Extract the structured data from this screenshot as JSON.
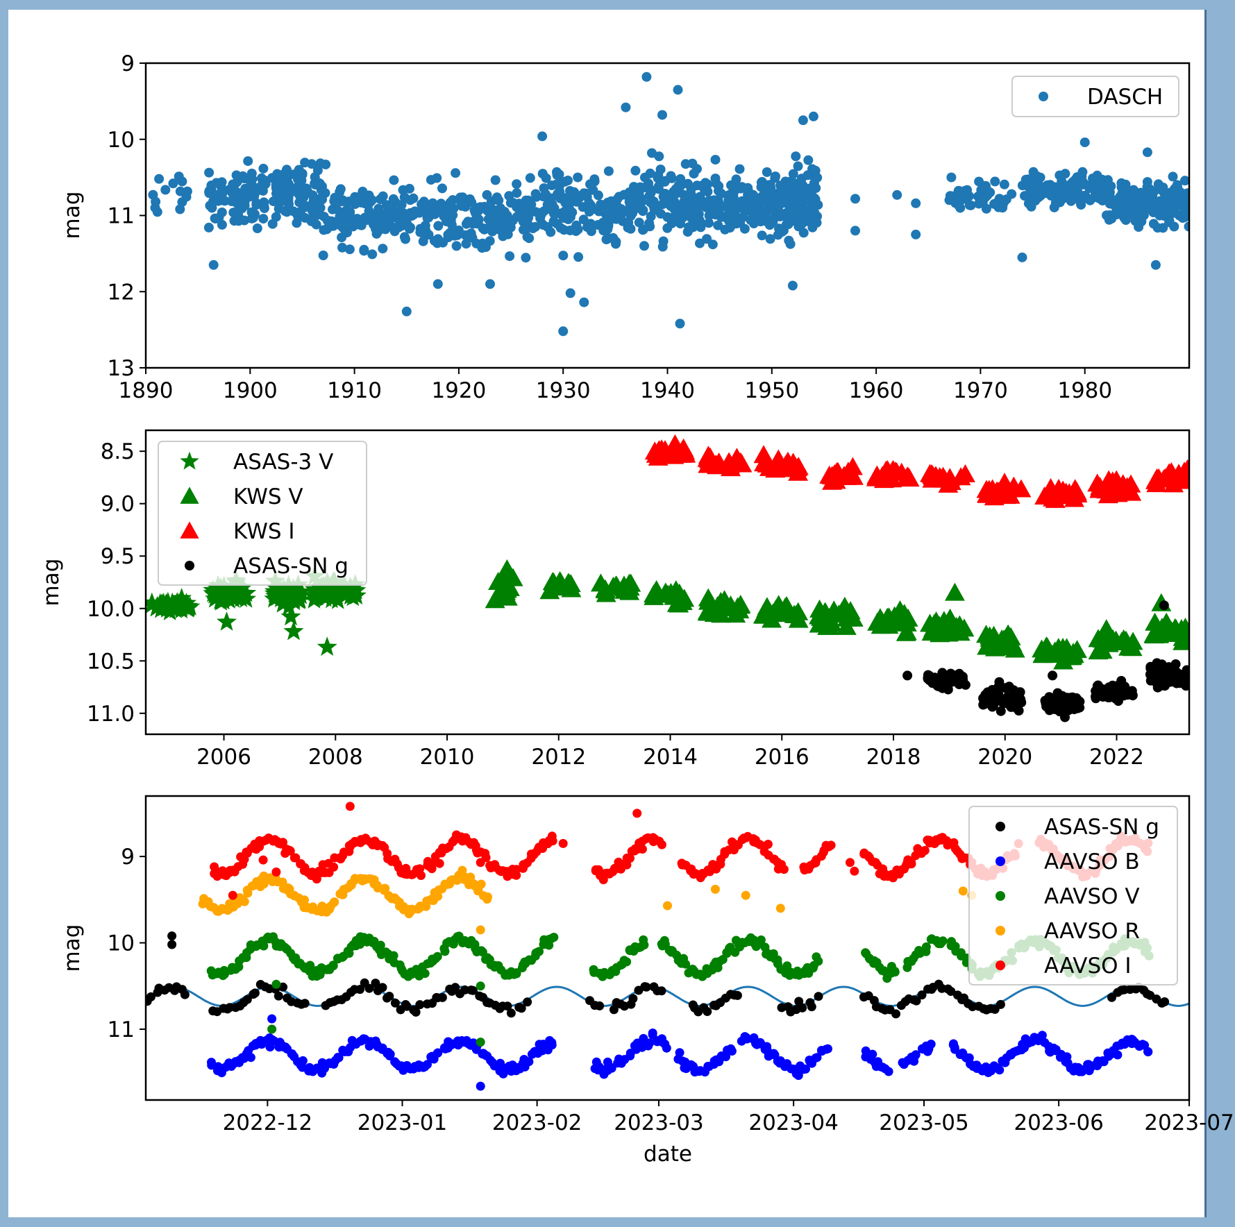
{
  "chart_data": [
    {
      "type": "scatter",
      "id": "dasch",
      "title": "",
      "xlabel": "",
      "ylabel": "mag",
      "xlim": [
        1890,
        1990
      ],
      "ylim": [
        13,
        9
      ],
      "y_inverted": true,
      "xticks": [
        1890,
        1900,
        1910,
        1920,
        1930,
        1940,
        1950,
        1960,
        1970,
        1980
      ],
      "yticks": [
        9,
        10,
        11,
        12,
        13
      ],
      "legend": {
        "placement": "top-right",
        "entries": [
          {
            "label": "DASCH",
            "color": "#1f77b4",
            "marker": "circle"
          }
        ]
      },
      "series": [
        {
          "name": "DASCH",
          "color": "#1f77b4",
          "marker": "circle",
          "segments": [
            {
              "x0": 1890.0,
              "x1": 1894.0,
              "y": 10.75,
              "spread": 0.3,
              "n": 14
            },
            {
              "x0": 1896.0,
              "x1": 1907.0,
              "y": 10.75,
              "spread": 0.35,
              "n": 170
            },
            {
              "x0": 1907.0,
              "x1": 1928.0,
              "y": 11.0,
              "spread": 0.35,
              "n": 300
            },
            {
              "x0": 1928.0,
              "x1": 1947.0,
              "y": 10.85,
              "spread": 0.4,
              "n": 330
            },
            {
              "x0": 1947.0,
              "x1": 1954.5,
              "y": 10.85,
              "spread": 0.4,
              "n": 200
            },
            {
              "x0": 1967.0,
              "x1": 1973.0,
              "y": 10.7,
              "spread": 0.2,
              "n": 45
            },
            {
              "x0": 1974.0,
              "x1": 1982.0,
              "y": 10.65,
              "spread": 0.2,
              "n": 110
            },
            {
              "x0": 1982.0,
              "x1": 1990.0,
              "y": 10.85,
              "spread": 0.25,
              "n": 150
            }
          ],
          "outliers": [
            [
              1938.0,
              9.18
            ],
            [
              1941.0,
              9.35
            ],
            [
              1936.0,
              9.58
            ],
            [
              1939.5,
              9.68
            ],
            [
              1954.0,
              9.7
            ],
            [
              1953.0,
              9.75
            ],
            [
              1930.0,
              12.52
            ],
            [
              1941.2,
              12.42
            ],
            [
              1915.0,
              12.26
            ],
            [
              1932.0,
              12.14
            ],
            [
              1930.7,
              12.02
            ],
            [
              1958.0,
              10.78
            ],
            [
              1958.0,
              11.2
            ],
            [
              1962.0,
              10.73
            ],
            [
              1963.8,
              10.84
            ],
            [
              1963.8,
              11.25
            ],
            [
              1974.0,
              11.55
            ],
            [
              1986.8,
              11.65
            ],
            [
              1896.5,
              11.65
            ],
            [
              1938.5,
              10.18
            ],
            [
              1986.0,
              10.17
            ],
            [
              1980.0,
              10.04
            ],
            [
              1928.0,
              9.96
            ],
            [
              1952.0,
              11.92
            ],
            [
              1918.0,
              11.9
            ],
            [
              1923.0,
              11.9
            ]
          ]
        }
      ]
    },
    {
      "type": "scatter",
      "id": "asas_kws",
      "title": "",
      "xlabel": "",
      "ylabel": "mag",
      "xlim": [
        2004.6,
        2023.3
      ],
      "ylim": [
        11.2,
        8.3
      ],
      "y_inverted": true,
      "xticks": [
        2006,
        2008,
        2010,
        2012,
        2014,
        2016,
        2018,
        2020,
        2022
      ],
      "yticks": [
        8.5,
        9.0,
        9.5,
        10.0,
        10.5,
        11.0
      ],
      "ytick_labels": [
        "8.5",
        "9.0",
        "9.5",
        "10.0",
        "10.5",
        "11.0"
      ],
      "legend": {
        "placement": "top-left",
        "entries": [
          {
            "label": "ASAS-3 V",
            "color": "#008000",
            "marker": "star"
          },
          {
            "label": "KWS V",
            "color": "#008000",
            "marker": "triangle"
          },
          {
            "label": "KWS I",
            "color": "#ff0000",
            "marker": "triangle"
          },
          {
            "label": "ASAS-SN g",
            "color": "#000000",
            "marker": "circle"
          }
        ]
      },
      "series": [
        {
          "name": "ASAS-3 V",
          "color": "#008000",
          "marker": "star",
          "segments": [
            {
              "x0": 2004.7,
              "x1": 2005.4,
              "y": 9.97,
              "spread": 0.05,
              "n": 40
            },
            {
              "x0": 2005.8,
              "x1": 2006.4,
              "y": 9.85,
              "spread": 0.08,
              "n": 45
            },
            {
              "x0": 2006.9,
              "x1": 2007.4,
              "y": 9.88,
              "spread": 0.09,
              "n": 40
            },
            {
              "x0": 2007.6,
              "x1": 2008.4,
              "y": 9.84,
              "spread": 0.08,
              "n": 50
            }
          ],
          "outliers": [
            [
              2006.05,
              10.13
            ],
            [
              2007.2,
              10.08
            ],
            [
              2007.25,
              10.22
            ],
            [
              2007.85,
              10.37
            ]
          ]
        },
        {
          "name": "KWS V",
          "color": "#008000",
          "marker": "triangle",
          "segments": [
            {
              "x0": 2010.85,
              "x1": 2011.2,
              "y": 9.82,
              "spread": 0.12,
              "n": 14
            },
            {
              "x0": 2011.8,
              "x1": 2012.25,
              "y": 9.77,
              "spread": 0.05,
              "n": 12
            },
            {
              "x0": 2012.7,
              "x1": 2013.3,
              "y": 9.8,
              "spread": 0.06,
              "n": 16
            },
            {
              "x0": 2013.7,
              "x1": 2014.3,
              "y": 9.88,
              "spread": 0.08,
              "n": 16
            },
            {
              "x0": 2014.65,
              "x1": 2015.3,
              "y": 9.97,
              "spread": 0.1,
              "n": 20
            },
            {
              "x0": 2015.65,
              "x1": 2016.3,
              "y": 10.02,
              "spread": 0.08,
              "n": 20
            },
            {
              "x0": 2016.65,
              "x1": 2017.3,
              "y": 10.1,
              "spread": 0.1,
              "n": 20
            },
            {
              "x0": 2017.65,
              "x1": 2018.3,
              "y": 10.12,
              "spread": 0.08,
              "n": 20
            },
            {
              "x0": 2018.65,
              "x1": 2019.3,
              "y": 10.2,
              "spread": 0.08,
              "n": 20
            },
            {
              "x0": 2019.65,
              "x1": 2020.3,
              "y": 10.32,
              "spread": 0.08,
              "n": 20
            },
            {
              "x0": 2020.65,
              "x1": 2021.3,
              "y": 10.4,
              "spread": 0.07,
              "n": 20
            },
            {
              "x0": 2021.65,
              "x1": 2022.3,
              "y": 10.32,
              "spread": 0.09,
              "n": 20
            },
            {
              "x0": 2022.65,
              "x1": 2023.3,
              "y": 10.2,
              "spread": 0.1,
              "n": 22
            }
          ],
          "outliers": [
            [
              2019.1,
              9.85
            ],
            [
              2022.8,
              9.95
            ]
          ]
        },
        {
          "name": "KWS I",
          "color": "#ff0000",
          "marker": "triangle",
          "segments": [
            {
              "x0": 2013.7,
              "x1": 2014.3,
              "y": 8.5,
              "spread": 0.06,
              "n": 18
            },
            {
              "x0": 2014.65,
              "x1": 2015.3,
              "y": 8.6,
              "spread": 0.07,
              "n": 20
            },
            {
              "x0": 2015.65,
              "x1": 2016.3,
              "y": 8.63,
              "spread": 0.07,
              "n": 20
            },
            {
              "x0": 2016.85,
              "x1": 2017.3,
              "y": 8.74,
              "spread": 0.07,
              "n": 16
            },
            {
              "x0": 2017.65,
              "x1": 2018.3,
              "y": 8.72,
              "spread": 0.06,
              "n": 18
            },
            {
              "x0": 2018.65,
              "x1": 2019.3,
              "y": 8.75,
              "spread": 0.05,
              "n": 18
            },
            {
              "x0": 2019.65,
              "x1": 2020.3,
              "y": 8.88,
              "spread": 0.07,
              "n": 20
            },
            {
              "x0": 2020.65,
              "x1": 2021.3,
              "y": 8.9,
              "spread": 0.06,
              "n": 20
            },
            {
              "x0": 2021.65,
              "x1": 2022.3,
              "y": 8.84,
              "spread": 0.08,
              "n": 20
            },
            {
              "x0": 2022.65,
              "x1": 2023.3,
              "y": 8.75,
              "spread": 0.08,
              "n": 22
            }
          ],
          "outliers": []
        },
        {
          "name": "ASAS-SN g",
          "color": "#000000",
          "marker": "circle",
          "segments": [
            {
              "x0": 2018.6,
              "x1": 2019.3,
              "y": 10.68,
              "spread": 0.07,
              "n": 60
            },
            {
              "x0": 2019.6,
              "x1": 2020.3,
              "y": 10.85,
              "spread": 0.09,
              "n": 80
            },
            {
              "x0": 2020.7,
              "x1": 2021.35,
              "y": 10.9,
              "spread": 0.08,
              "n": 70
            },
            {
              "x0": 2021.6,
              "x1": 2022.3,
              "y": 10.8,
              "spread": 0.06,
              "n": 70
            },
            {
              "x0": 2022.6,
              "x1": 2023.3,
              "y": 10.65,
              "spread": 0.09,
              "n": 90
            }
          ],
          "outliers": [
            [
              2018.25,
              10.64
            ],
            [
              2020.85,
              10.64
            ],
            [
              2022.85,
              9.97
            ]
          ]
        }
      ]
    },
    {
      "type": "scatter",
      "id": "aavso_recent",
      "title": "",
      "xlabel": "date",
      "ylabel": "mag",
      "xlim": [
        "2022-11-03",
        "2023-07-01"
      ],
      "ylim": [
        11.82,
        8.3
      ],
      "y_inverted": true,
      "xticks": [
        "2022-12-01",
        "2023-01-01",
        "2023-02-01",
        "2023-03-01",
        "2023-04-01",
        "2023-05-01",
        "2023-06-01",
        "2023-07-01"
      ],
      "xtick_labels": [
        "2022-12",
        "2023-01",
        "2023-02",
        "2023-03",
        "2023-04",
        "2023-05",
        "2023-06",
        "2023-07"
      ],
      "yticks": [
        9,
        10,
        11
      ],
      "legend": {
        "placement": "top-right",
        "entries": [
          {
            "label": "ASAS-SN g",
            "color": "#000000",
            "marker": "circle"
          },
          {
            "label": "AAVSO B",
            "color": "#0000ff",
            "marker": "circle"
          },
          {
            "label": "AAVSO V",
            "color": "#008000",
            "marker": "circle"
          },
          {
            "label": "AAVSO R",
            "color": "#ffa500",
            "marker": "circle"
          },
          {
            "label": "AAVSO I",
            "color": "#ff0000",
            "marker": "circle"
          }
        ]
      },
      "model_curve": {
        "name": "sinusoid fit",
        "color": "#1f77b4",
        "mean": 10.62,
        "amplitude": 0.11,
        "period_days": 22,
        "phase_day": 12
      },
      "series": [
        {
          "name": "ASAS-SN g",
          "color": "#000000",
          "offset": 0.03,
          "amplitude": 0.12,
          "ranges": [
            [
              0,
              8
            ],
            [
              15,
              36
            ],
            [
              41,
              87
            ],
            [
              102,
              104
            ],
            [
              107,
              118
            ],
            [
              125,
              136
            ],
            [
              146,
              154
            ],
            [
              165,
              196
            ],
            [
              222,
              234
            ]
          ],
          "outliers": [
            [
              6,
              9.92
            ],
            [
              6,
              10.02
            ],
            [
              9,
              10.6
            ]
          ]
        },
        {
          "name": "AAVSO B",
          "color": "#0000ff",
          "offset": 0.68,
          "amplitude": 0.15,
          "ranges": [
            [
              15,
              93
            ],
            [
              103,
              119
            ],
            [
              122,
              134
            ],
            [
              137,
              156
            ],
            [
              165,
              170
            ],
            [
              174,
              180
            ],
            [
              185,
              230
            ]
          ],
          "outliers": [
            [
              29,
              10.88
            ],
            [
              77,
              11.66
            ]
          ]
        },
        {
          "name": "AAVSO V",
          "color": "#008000",
          "offset": -0.46,
          "amplitude": 0.17,
          "ranges": [
            [
              15,
              93
            ],
            [
              103,
              114
            ],
            [
              118,
              154
            ],
            [
              165,
              172
            ],
            [
              175,
              183
            ],
            [
              185,
              230
            ]
          ],
          "outliers": [
            [
              29,
              11.0
            ],
            [
              30,
              10.48
            ],
            [
              77,
              11.15
            ],
            [
              77,
              10.5
            ]
          ]
        },
        {
          "name": "AAVSO R",
          "color": "#ffa500",
          "offset": -1.18,
          "amplitude": 0.17,
          "ranges": [
            [
              13,
              78
            ]
          ],
          "outliers": [
            [
              77,
              9.85
            ],
            [
              120,
              9.57
            ],
            [
              131,
              9.38
            ],
            [
              138,
              9.45
            ],
            [
              146,
              9.6
            ],
            [
              188,
              9.4
            ],
            [
              190,
              9.45
            ]
          ]
        },
        {
          "name": "AAVSO I",
          "color": "#ff0000",
          "offset": -1.62,
          "amplitude": 0.18,
          "ranges": [
            [
              15,
              93
            ],
            [
              103,
              118
            ],
            [
              123,
              146
            ],
            [
              151,
              157
            ],
            [
              165,
              180
            ],
            [
              181,
              200
            ],
            [
              205,
              230
            ]
          ],
          "outliers": [
            [
              47,
              8.42
            ],
            [
              96,
              8.85
            ],
            [
              113,
              8.5
            ],
            [
              77,
              9.07
            ],
            [
              27,
              9.04
            ],
            [
              30,
              9.18
            ],
            [
              20,
              9.45
            ],
            [
              162,
              9.07
            ],
            [
              163,
              9.17
            ]
          ]
        }
      ]
    }
  ]
}
